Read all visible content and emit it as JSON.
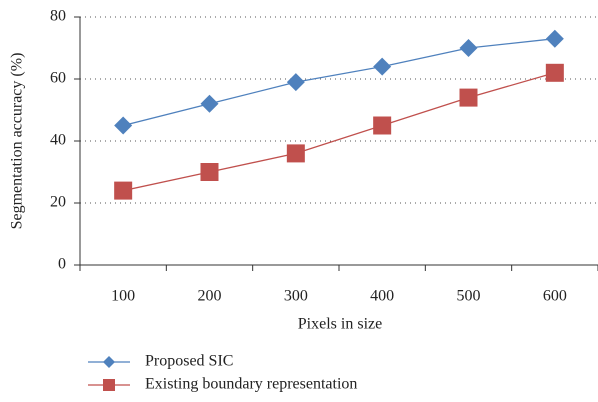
{
  "chart_data": {
    "type": "line",
    "xlabel": "Pixels in size",
    "ylabel": "Segmentation accuracy (%)",
    "categories": [
      "100",
      "200",
      "300",
      "400",
      "500",
      "600"
    ],
    "series": [
      {
        "name": "Proposed SIC",
        "color": "#4f81bd",
        "marker": "diamond",
        "values": [
          45,
          52,
          59,
          64,
          70,
          73
        ]
      },
      {
        "name": "Existing boundary representation",
        "color": "#c0504d",
        "marker": "square",
        "values": [
          24,
          30,
          36,
          45,
          54,
          62
        ]
      }
    ],
    "ylim": [
      0,
      80
    ],
    "yticks": [
      0,
      20,
      40,
      60,
      80
    ],
    "grid": true,
    "legend": "bottom"
  }
}
